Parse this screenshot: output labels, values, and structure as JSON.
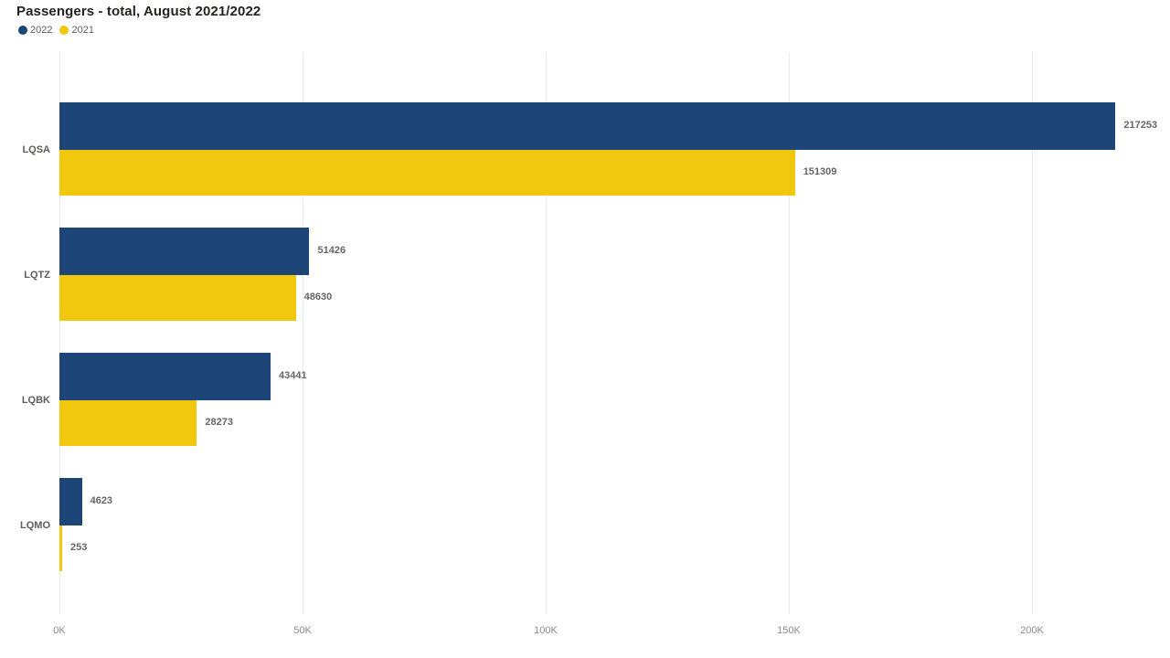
{
  "title": "Passengers - total, August 2021/2022",
  "chart_data": {
    "type": "bar",
    "orientation": "horizontal",
    "title": "Passengers - total, August 2021/2022",
    "categories": [
      "LQSA",
      "LQTZ",
      "LQBK",
      "LQMO"
    ],
    "series": [
      {
        "name": "2022",
        "color": "#1D4577",
        "values": [
          217253,
          51426,
          43441,
          4623
        ]
      },
      {
        "name": "2021",
        "color": "#F2C80F",
        "values": [
          151309,
          48630,
          28273,
          253
        ]
      }
    ],
    "data_labels": [
      [
        "217253",
        "51426",
        "43441",
        "4623"
      ],
      [
        "151309",
        "48630",
        "28273",
        "253"
      ]
    ],
    "xlabel": "",
    "ylabel": "",
    "x_axis": {
      "max": 220000,
      "ticks": [
        {
          "value": 0,
          "label": "0K"
        },
        {
          "value": 50000,
          "label": "50K"
        },
        {
          "value": 100000,
          "label": "100K"
        },
        {
          "value": 150000,
          "label": "150K"
        },
        {
          "value": 200000,
          "label": "200K"
        }
      ]
    },
    "grid": true,
    "legend_position": "top-left",
    "background": "#ffffff",
    "gridline_color": "#EBEBEB",
    "label_color": "#666666",
    "axis_label_color": "#8C8C8C",
    "category_label_color": "#605E5C"
  }
}
